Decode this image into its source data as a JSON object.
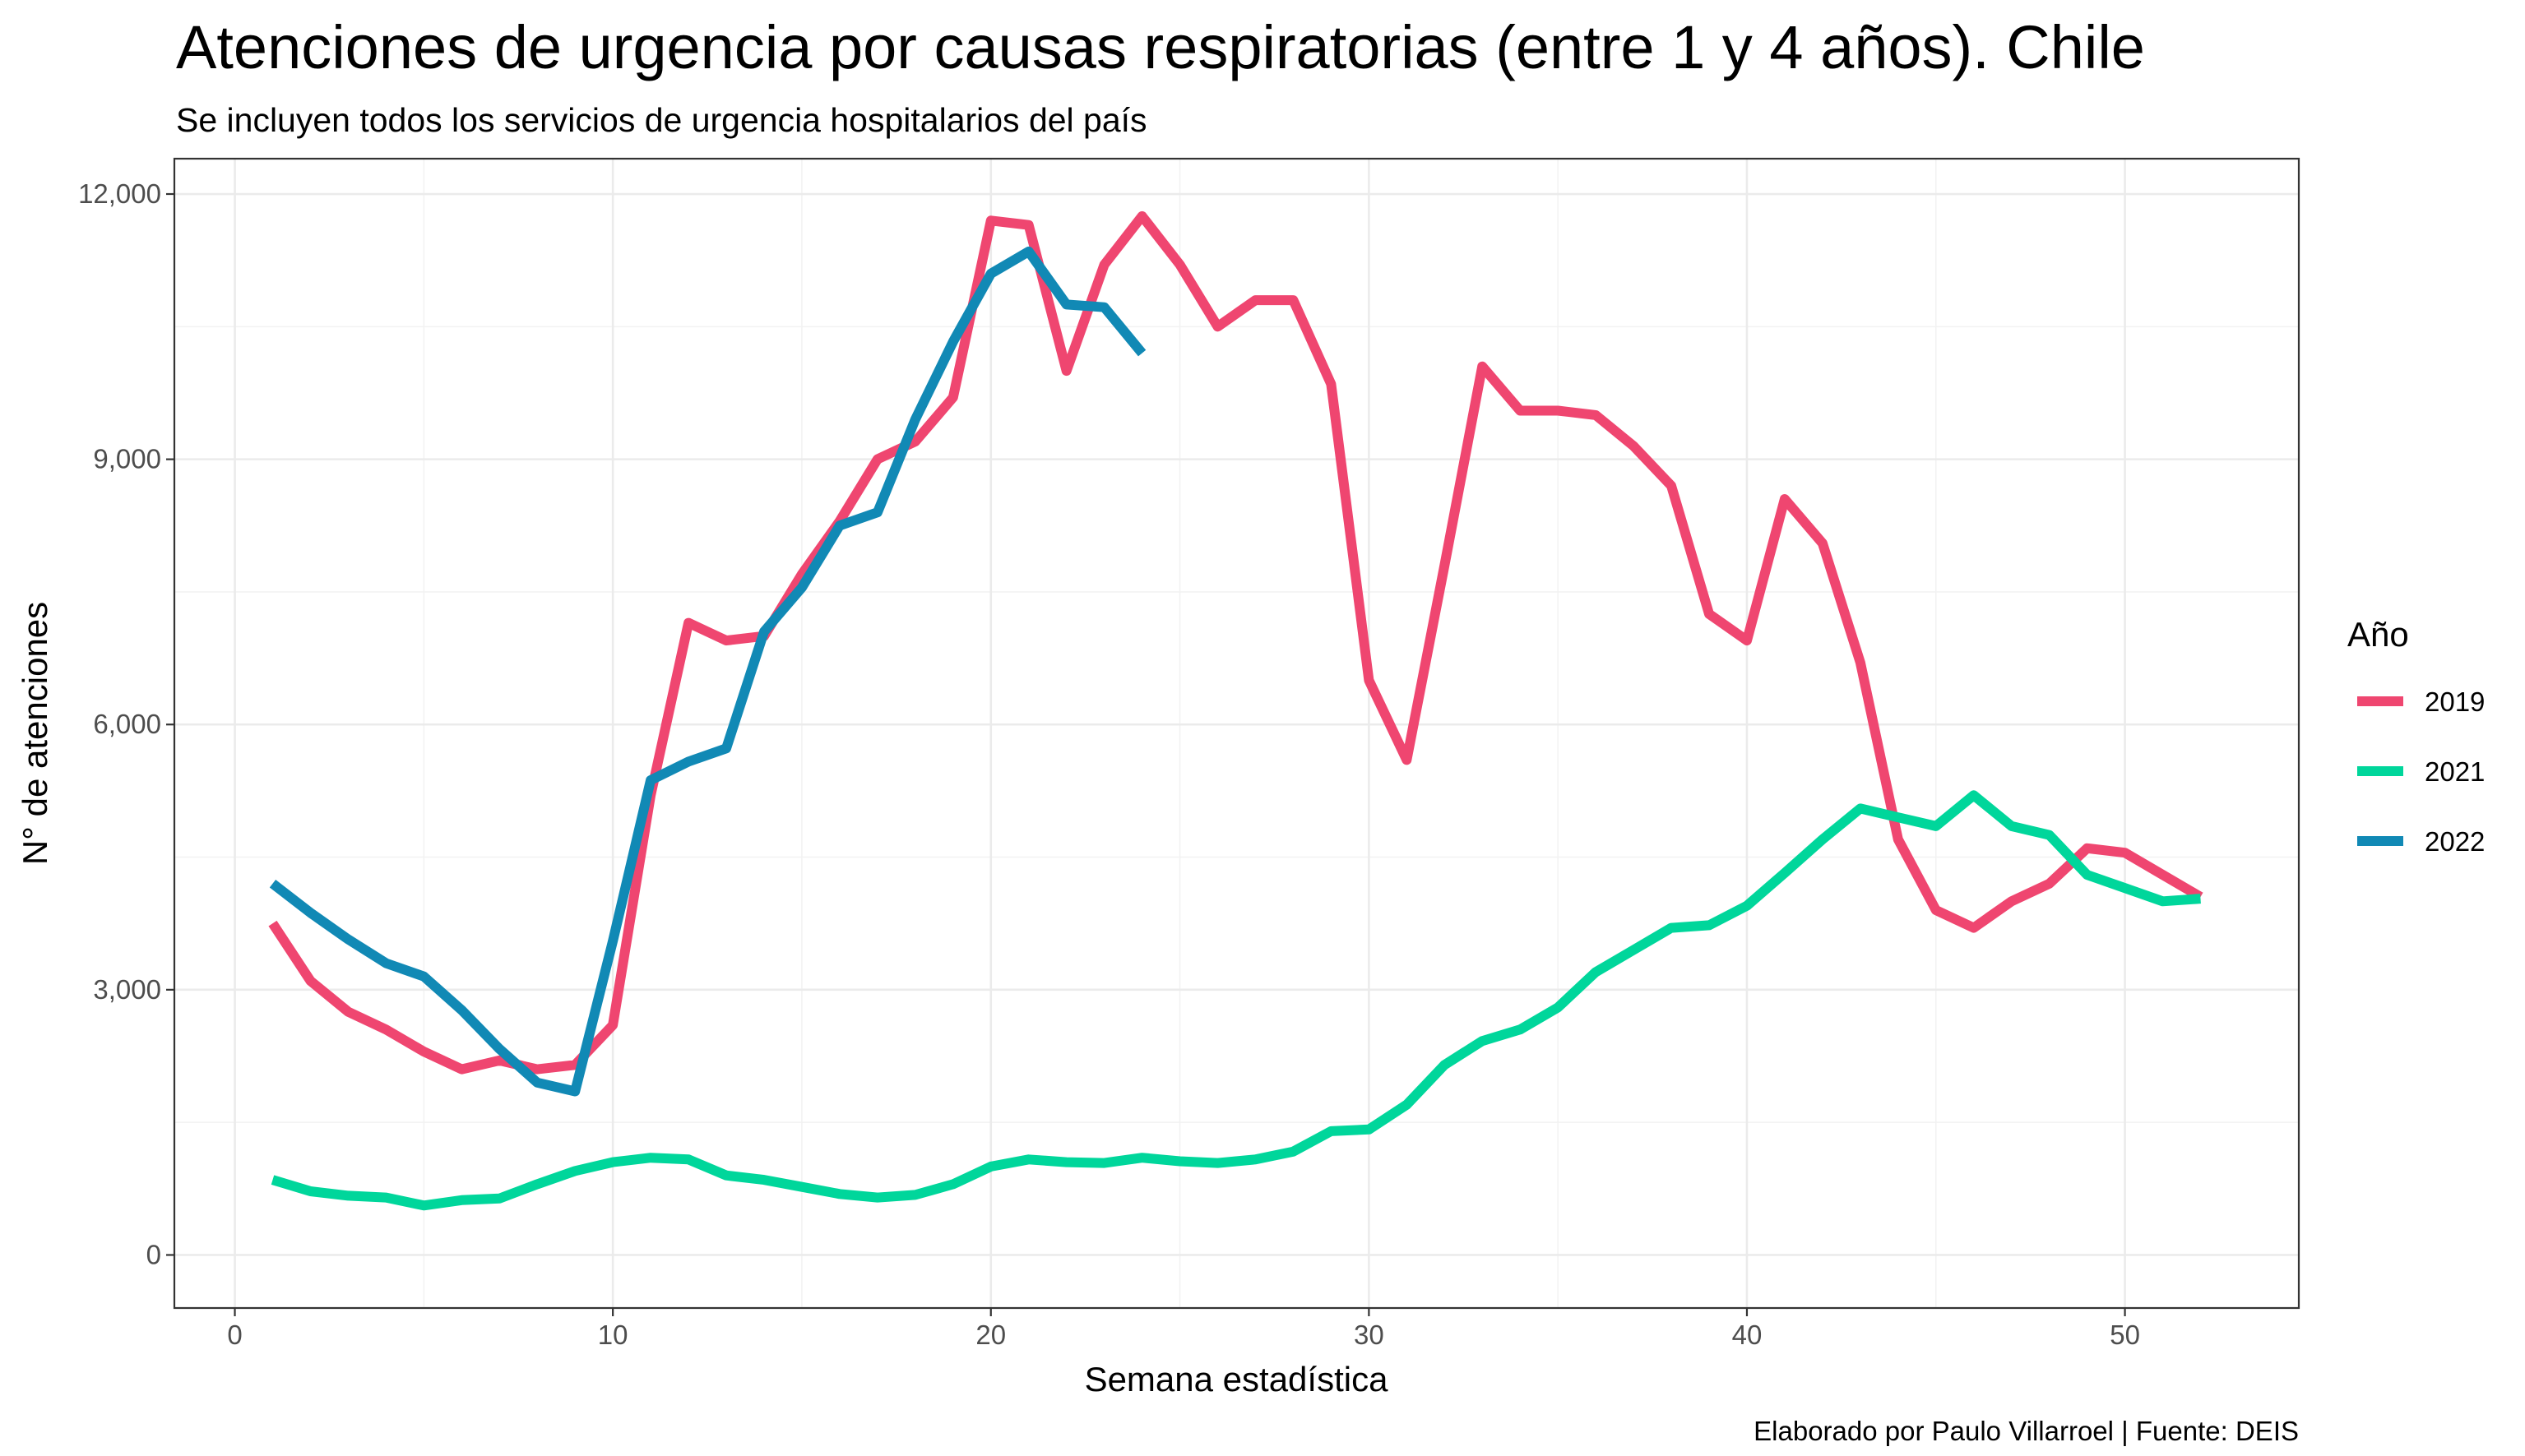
{
  "chart_data": {
    "type": "line",
    "title": "Atenciones de urgencia por causas respiratorias (entre 1 y 4 años). Chile",
    "subtitle": "Se incluyen todos los servicios de urgencia hospitalarios del país",
    "caption": "Elaborado por Paulo Villarroel | Fuente: DEIS",
    "xlabel": "Semana estadística",
    "ylabel": "N° de atenciones",
    "xlim": [
      -1.6,
      54.6
    ],
    "ylim": [
      -600,
      12400
    ],
    "x_ticks": [
      0,
      10,
      20,
      30,
      40,
      50
    ],
    "x_tick_labels": [
      "0",
      "10",
      "20",
      "30",
      "40",
      "50"
    ],
    "y_ticks": [
      0,
      3000,
      6000,
      9000,
      12000
    ],
    "y_tick_labels": [
      "0",
      "3,000",
      "6,000",
      "9,000",
      "12,000"
    ],
    "grid": true,
    "legend": {
      "title": "Año",
      "position": "right"
    },
    "series": [
      {
        "name": "2019",
        "color": "#EF4670",
        "x": [
          1,
          2,
          3,
          4,
          5,
          6,
          7,
          8,
          9,
          10,
          11,
          12,
          13,
          14,
          15,
          16,
          17,
          18,
          19,
          20,
          21,
          22,
          23,
          24,
          25,
          26,
          27,
          28,
          29,
          30,
          31,
          32,
          33,
          34,
          35,
          36,
          37,
          38,
          39,
          40,
          41,
          42,
          43,
          44,
          45,
          46,
          47,
          48,
          49,
          50,
          51,
          52
        ],
        "y": [
          3750,
          3100,
          2750,
          2550,
          2300,
          2100,
          2200,
          2100,
          2150,
          2600,
          5200,
          7150,
          6950,
          7000,
          7700,
          8300,
          9000,
          9200,
          9700,
          11700,
          11650,
          10000,
          11200,
          11750,
          11200,
          10500,
          10800,
          10800,
          9850,
          6500,
          5600,
          7800,
          10050,
          9550,
          9550,
          9500,
          9150,
          8700,
          7250,
          6950,
          8550,
          8050,
          6700,
          4700,
          3900,
          3700,
          4000,
          4200,
          4600,
          4550,
          4300,
          4050
        ]
      },
      {
        "name": "2021",
        "color": "#00D69B",
        "x": [
          1,
          2,
          3,
          4,
          5,
          6,
          7,
          8,
          9,
          10,
          11,
          12,
          13,
          14,
          15,
          16,
          17,
          18,
          19,
          20,
          21,
          22,
          23,
          24,
          25,
          26,
          27,
          28,
          29,
          30,
          31,
          32,
          33,
          34,
          35,
          36,
          37,
          38,
          39,
          40,
          41,
          42,
          43,
          44,
          45,
          46,
          47,
          48,
          49,
          50,
          51,
          52
        ],
        "y": [
          850,
          720,
          670,
          650,
          560,
          620,
          640,
          800,
          950,
          1050,
          1100,
          1080,
          900,
          850,
          770,
          690,
          650,
          680,
          800,
          1000,
          1080,
          1050,
          1040,
          1100,
          1060,
          1040,
          1080,
          1170,
          1400,
          1420,
          1700,
          2150,
          2420,
          2550,
          2800,
          3200,
          3450,
          3700,
          3730,
          3950,
          4320,
          4700,
          5050,
          4950,
          4850,
          5200,
          4850,
          4750,
          4300,
          4150,
          4000,
          4030
        ]
      },
      {
        "name": "2022",
        "color": "#1189B5",
        "x": [
          1,
          2,
          3,
          4,
          5,
          6,
          7,
          8,
          9,
          10,
          11,
          12,
          13,
          14,
          15,
          16,
          17,
          18,
          19,
          20,
          21,
          22,
          23,
          24
        ],
        "y": [
          4200,
          3870,
          3570,
          3300,
          3150,
          2770,
          2330,
          1950,
          1850,
          3550,
          5370,
          5580,
          5730,
          7050,
          7550,
          8250,
          8400,
          9450,
          10330,
          11100,
          11350,
          10750,
          10720,
          10200
        ]
      }
    ]
  }
}
